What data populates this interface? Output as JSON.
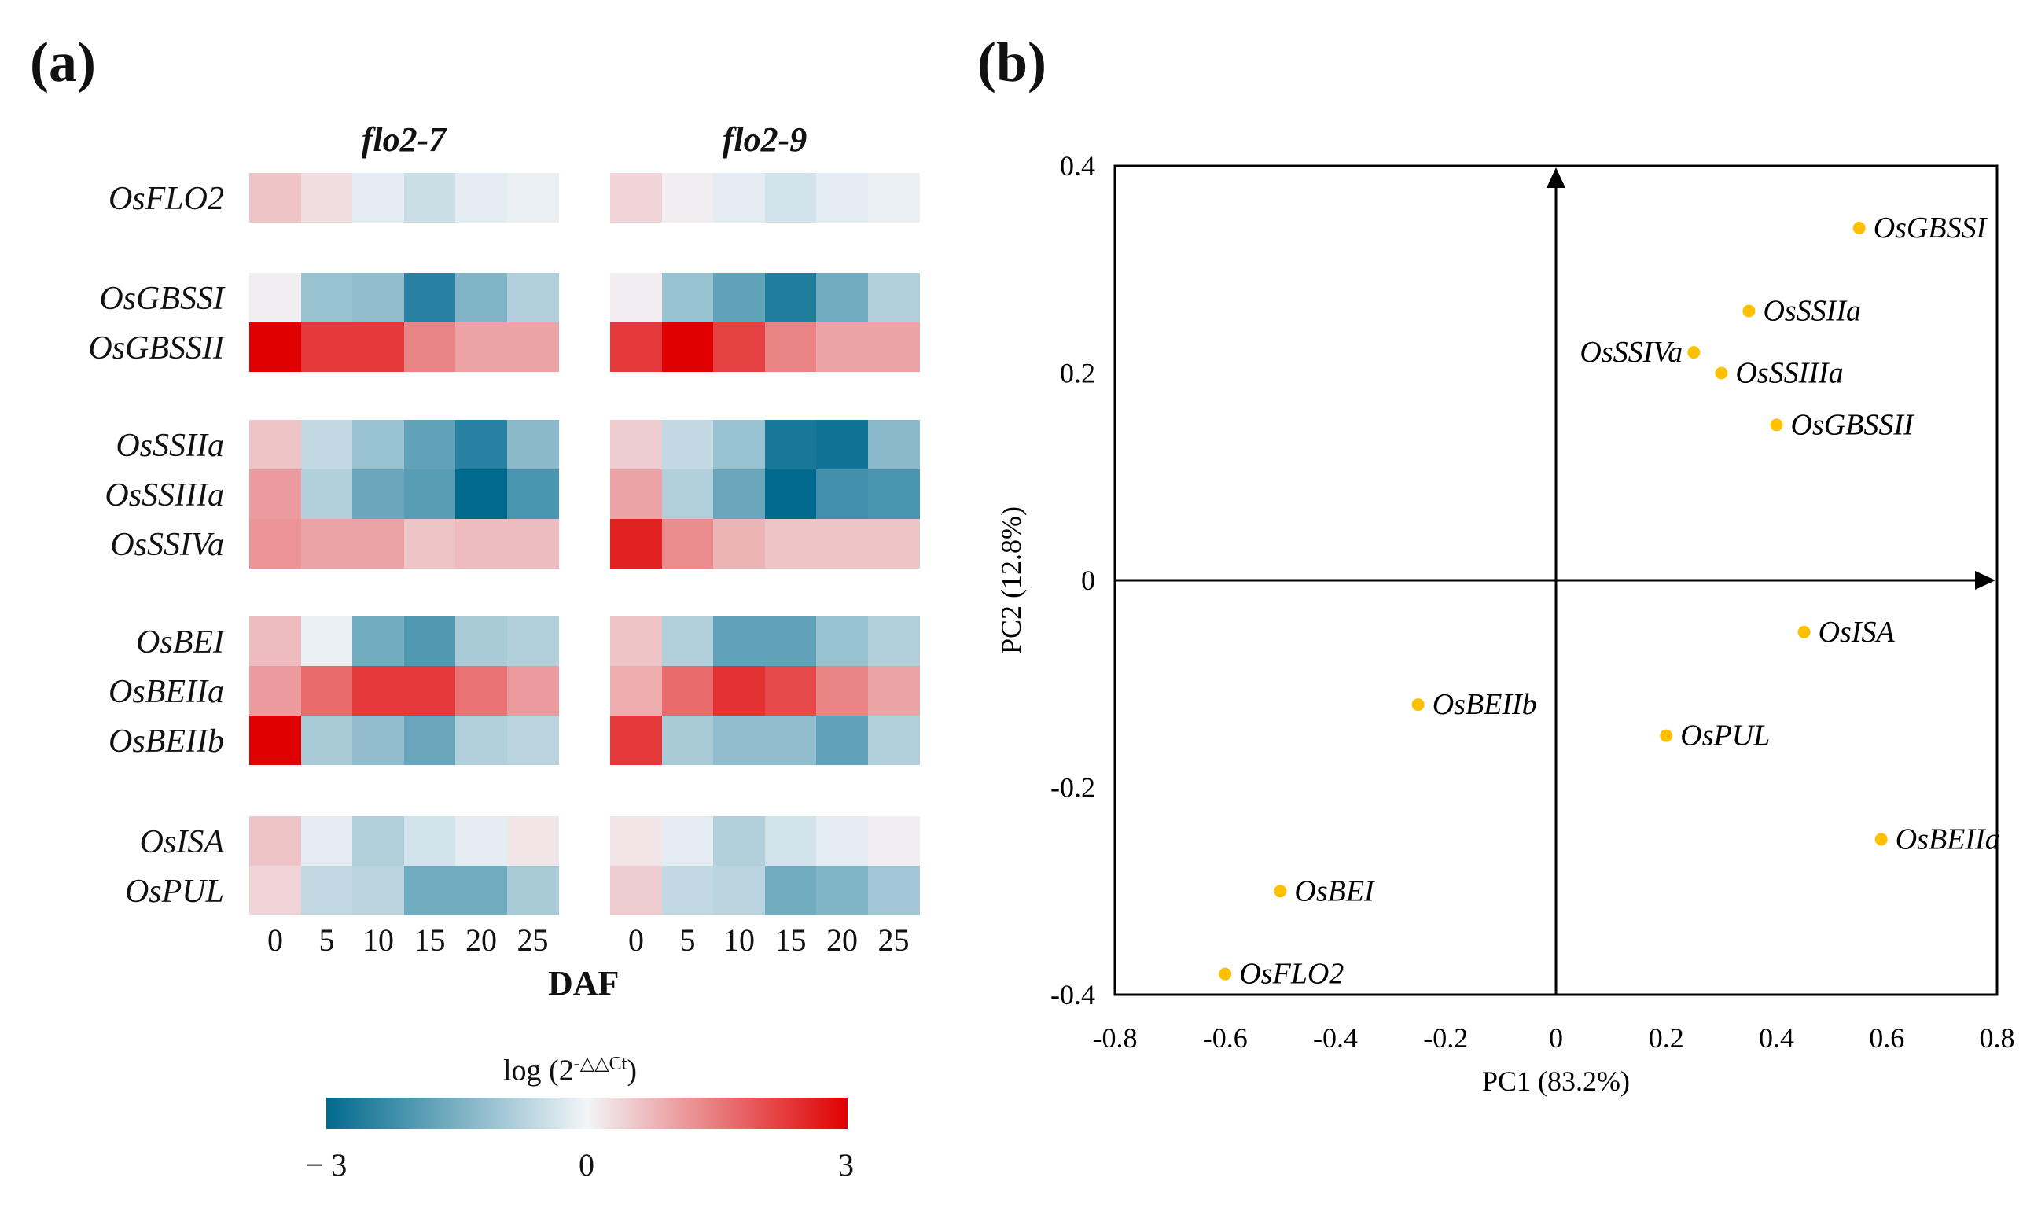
{
  "panel_a_label": "(a)",
  "panel_b_label": "(b)",
  "chart_data": [
    {
      "type": "heatmap",
      "title": "",
      "strains": [
        "flo2-7",
        "flo2-9"
      ],
      "genes": [
        "OsFLO2",
        "OsGBSSI",
        "OsGBSSII",
        "OsSSIIa",
        "OsSSIIIa",
        "OsSSIVa",
        "OsBEI",
        "OsBEIIa",
        "OsBEIIb",
        "OsISA",
        "OsPUL"
      ],
      "gene_groups": [
        [
          0
        ],
        [
          1,
          2
        ],
        [
          3,
          4,
          5
        ],
        [
          6,
          7,
          8
        ],
        [
          9,
          10
        ]
      ],
      "x_ticks": [
        "0",
        "5",
        "10",
        "15",
        "20",
        "25"
      ],
      "xlabel": "DAF",
      "values": {
        "flo2-7": [
          [
            0.6,
            0.3,
            -0.2,
            -0.5,
            -0.2,
            -0.1
          ],
          [
            0.1,
            -1.1,
            -1.2,
            -2.5,
            -1.4,
            -0.8
          ],
          [
            3.0,
            2.3,
            2.3,
            1.4,
            1.0,
            1.0
          ],
          [
            0.6,
            -0.6,
            -1.1,
            -1.8,
            -2.5,
            -1.3
          ],
          [
            1.1,
            -0.8,
            -1.7,
            -1.9,
            -3.0,
            -2.1
          ],
          [
            1.2,
            1.0,
            1.0,
            0.6,
            0.7,
            0.7
          ],
          [
            0.7,
            -0.1,
            -1.6,
            -2.0,
            -0.9,
            -0.8
          ],
          [
            1.1,
            1.7,
            2.3,
            2.3,
            1.6,
            1.1
          ],
          [
            3.0,
            -0.9,
            -1.2,
            -1.7,
            -0.8,
            -0.7
          ],
          [
            0.6,
            -0.2,
            -0.8,
            -0.4,
            -0.2,
            0.2
          ],
          [
            0.4,
            -0.6,
            -0.7,
            -1.6,
            -1.6,
            -0.9
          ]
        ],
        "flo2-9": [
          [
            0.4,
            0.1,
            -0.2,
            -0.4,
            -0.2,
            -0.1
          ],
          [
            0.1,
            -1.1,
            -1.8,
            -2.6,
            -1.6,
            -0.8
          ],
          [
            2.3,
            3.0,
            2.2,
            1.4,
            1.0,
            1.0
          ],
          [
            0.5,
            -0.6,
            -1.1,
            -2.7,
            -2.8,
            -1.3
          ],
          [
            1.0,
            -0.8,
            -1.7,
            -3.0,
            -2.2,
            -2.1
          ],
          [
            2.6,
            1.3,
            0.8,
            0.6,
            0.6,
            0.6
          ],
          [
            0.6,
            -0.8,
            -1.8,
            -1.8,
            -1.1,
            -0.8
          ],
          [
            0.9,
            1.7,
            2.4,
            2.1,
            1.4,
            1.0
          ],
          [
            2.3,
            -0.9,
            -1.2,
            -1.2,
            -1.8,
            -0.8
          ],
          [
            0.2,
            -0.2,
            -0.8,
            -0.4,
            -0.2,
            0.1
          ],
          [
            0.5,
            -0.6,
            -0.7,
            -1.6,
            -1.4,
            -1.0
          ]
        ]
      },
      "colorbar": {
        "title": "log (2",
        "title_sup": "-△△Ct",
        "title_end": ")",
        "range": [
          -3,
          3
        ],
        "ticks": [
          "− 3",
          "0",
          "3"
        ],
        "colors": {
          "low": "#006a8e",
          "mid": "#f2f5f8",
          "high": "#e00000"
        }
      }
    },
    {
      "type": "scatter",
      "xlabel": "PC1 (83.2%)",
      "ylabel": "PC2 (12.8%)",
      "xlim": [
        -0.8,
        0.8
      ],
      "ylim": [
        -0.4,
        0.4
      ],
      "x_ticks": [
        "-0.8",
        "-0.6",
        "-0.4",
        "-0.2",
        "0",
        "0.2",
        "0.4",
        "0.6",
        "0.8"
      ],
      "y_ticks": [
        "0.4",
        "0.2",
        "0",
        "-0.2",
        "-0.4"
      ],
      "point_color": "#ffc000",
      "points": [
        {
          "label": "OsGBSSI",
          "x": 0.55,
          "y": 0.34,
          "side": "right"
        },
        {
          "label": "OsSSIIa",
          "x": 0.35,
          "y": 0.26,
          "side": "right"
        },
        {
          "label": "OsSSIVa",
          "x": 0.25,
          "y": 0.22,
          "side": "left"
        },
        {
          "label": "OsSSIIIa",
          "x": 0.3,
          "y": 0.2,
          "side": "right"
        },
        {
          "label": "OsGBSSII",
          "x": 0.4,
          "y": 0.15,
          "side": "right"
        },
        {
          "label": "OsISA",
          "x": 0.45,
          "y": -0.05,
          "side": "right"
        },
        {
          "label": "OsBEIIb",
          "x": -0.25,
          "y": -0.12,
          "side": "right"
        },
        {
          "label": "OsPUL",
          "x": 0.2,
          "y": -0.15,
          "side": "right"
        },
        {
          "label": "OsBEIIa",
          "x": 0.59,
          "y": -0.25,
          "side": "right"
        },
        {
          "label": "OsBEI",
          "x": -0.5,
          "y": -0.3,
          "side": "right"
        },
        {
          "label": "OsFLO2",
          "x": -0.6,
          "y": -0.38,
          "side": "right"
        }
      ]
    }
  ]
}
